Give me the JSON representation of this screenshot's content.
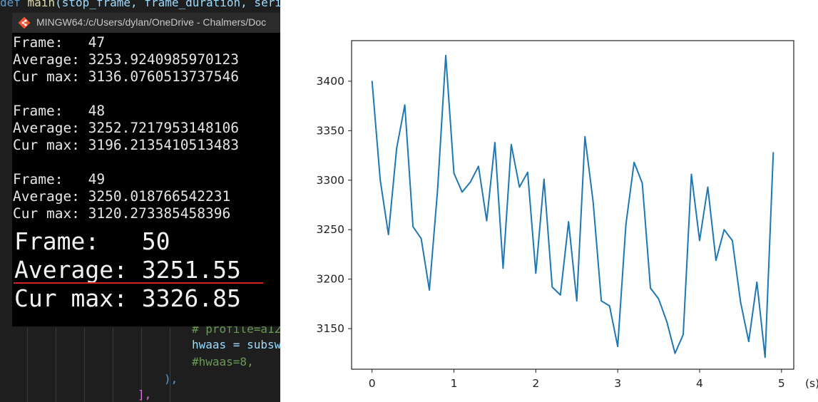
{
  "editor": {
    "top_code": {
      "kw": "def",
      "fn": "main",
      "rest": "(stop_frame, frame_duration, seri"
    },
    "lines": [
      {
        "text": "# profile=a12",
        "cls": "cm"
      },
      {
        "text": "hwaas = subsw",
        "cls": "id"
      },
      {
        "text": "#hwaas=8,",
        "cls": "cm"
      },
      {
        "text": "),",
        "cls": "kw"
      },
      {
        "text": "],",
        "cls": "kw"
      }
    ]
  },
  "terminal": {
    "title": "MINGW64:/c/Users/dylan/OneDrive - Chalmers/Doc",
    "icon": "git-bash-icon",
    "lines": [
      "Frame:   47",
      "Average: 3253.9240985970123",
      "Cur max: 3136.0760513737546",
      "",
      "Frame:   48",
      "Average: 3252.7217953148106",
      "Cur max: 3196.2135410513483",
      "",
      "Frame:   49",
      "Average: 3250.018766542231",
      "Cur max: 3120.273385458396"
    ],
    "highlight": {
      "frame": "Frame:   50",
      "average": "Average: 3251.55",
      "cur_max": "Cur max: 3326.85"
    }
  },
  "chart_data": {
    "type": "line",
    "title": "",
    "xlabel": "(s)",
    "ylabel": "",
    "xlim": [
      -0.25,
      5.15
    ],
    "ylim": [
      3109,
      3441
    ],
    "xticks": [
      0,
      1,
      2,
      3,
      4,
      5
    ],
    "yticks": [
      3150,
      3200,
      3250,
      3300,
      3350,
      3400
    ],
    "grid": false,
    "color": "#1f77b4",
    "x": [
      0,
      0.1,
      0.2,
      0.3,
      0.4,
      0.5,
      0.6,
      0.7,
      0.8,
      0.9,
      1.0,
      1.1,
      1.2,
      1.3,
      1.4,
      1.5,
      1.6,
      1.7,
      1.8,
      1.9,
      2.0,
      2.1,
      2.2,
      2.3,
      2.4,
      2.5,
      2.6,
      2.7,
      2.8,
      2.9,
      3.0,
      3.1,
      3.2,
      3.3,
      3.4,
      3.5,
      3.6,
      3.7,
      3.8,
      3.9,
      4.0,
      4.1,
      4.2,
      4.3,
      4.4,
      4.5,
      4.6,
      4.7,
      4.8,
      4.9
    ],
    "y": [
      3400,
      3300,
      3245,
      3332,
      3376,
      3253,
      3241,
      3189,
      3290,
      3426,
      3307,
      3288,
      3298,
      3314,
      3259,
      3338,
      3211,
      3336,
      3293,
      3308,
      3206,
      3301,
      3192,
      3184,
      3258,
      3178,
      3344,
      3278,
      3178,
      3173,
      3132,
      3255,
      3318,
      3297,
      3191,
      3180,
      3157,
      3125,
      3144,
      3306,
      3239,
      3293,
      3219,
      3250,
      3239,
      3177,
      3137,
      3197,
      3121,
      3328
    ]
  }
}
